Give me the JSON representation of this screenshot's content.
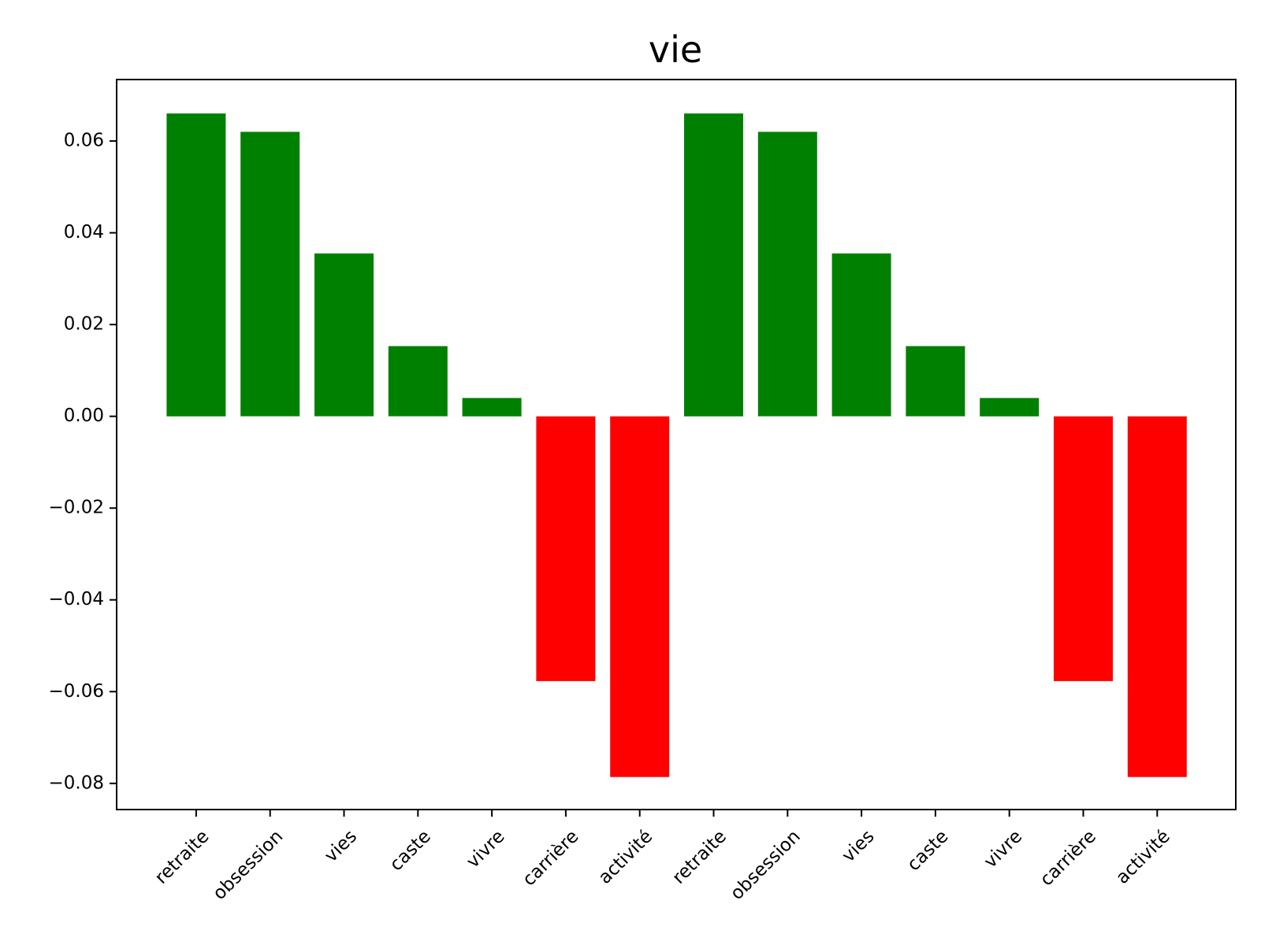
{
  "chart_data": {
    "type": "bar",
    "title": "vie",
    "xlabel": "",
    "ylabel": "",
    "categories": [
      "retraite",
      "obsession",
      "vies",
      "caste",
      "vivre",
      "carrière",
      "activité",
      "retraite",
      "obsession",
      "vies",
      "caste",
      "vivre",
      "carrière",
      "activité"
    ],
    "values": [
      0.066,
      0.062,
      0.0355,
      0.0153,
      0.004,
      -0.0577,
      -0.0786,
      0.066,
      0.062,
      0.0355,
      0.0153,
      0.004,
      -0.0577,
      -0.0786
    ],
    "ylim": [
      -0.0857,
      0.0734
    ],
    "yticks": [
      0.06,
      0.04,
      0.02,
      0.0,
      -0.02,
      -0.04,
      -0.06,
      -0.08
    ],
    "ytick_labels": [
      "0.06",
      "0.04",
      "0.02",
      "0.00",
      "−0.02",
      "−0.04",
      "−0.06",
      "−0.08"
    ],
    "colors": {
      "positive": "#008000",
      "negative": "#ff0000"
    },
    "grid": false,
    "legend": "none"
  }
}
